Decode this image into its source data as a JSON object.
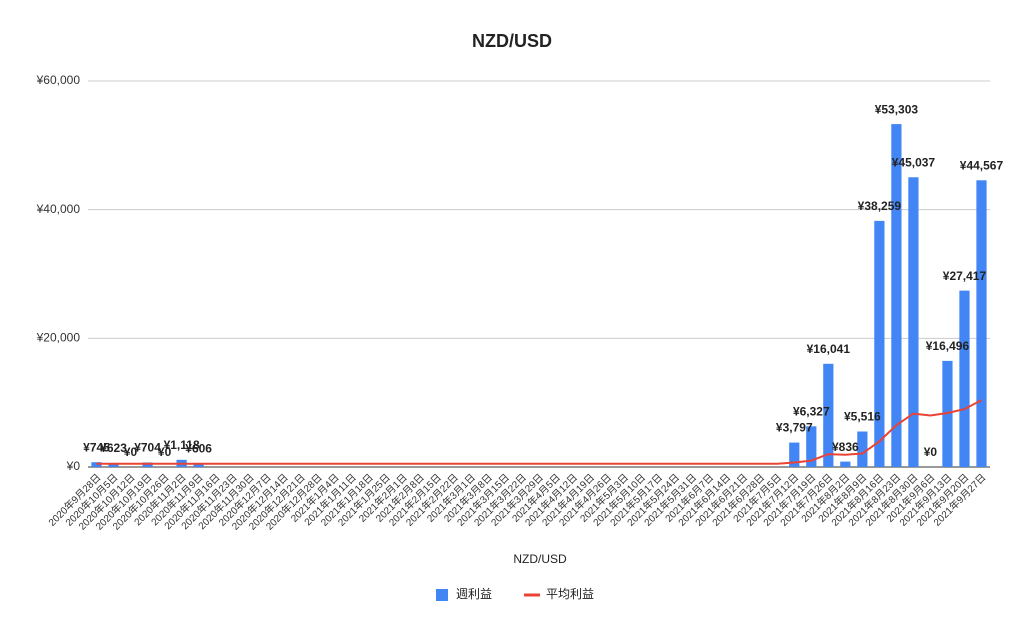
{
  "chart_data": {
    "type": "bar",
    "title": "NZD/USD",
    "x_label": "NZD/USD",
    "categories": [
      "2020年9月28日",
      "2020年10月5日",
      "2020年10月12日",
      "2020年10月19日",
      "2020年10月26日",
      "2020年11月2日",
      "2020年11月9日",
      "2020年11月16日",
      "2020年11月23日",
      "2020年11月30日",
      "2020年12月7日",
      "2020年12月14日",
      "2020年12月21日",
      "2020年12月28日",
      "2021年1月4日",
      "2021年1月11日",
      "2021年1月18日",
      "2021年1月25日",
      "2021年2月1日",
      "2021年2月8日",
      "2021年2月15日",
      "2021年2月22日",
      "2021年3月1日",
      "2021年3月8日",
      "2021年3月15日",
      "2021年3月22日",
      "2021年3月29日",
      "2021年4月5日",
      "2021年4月12日",
      "2021年4月19日",
      "2021年4月26日",
      "2021年5月3日",
      "2021年5月10日",
      "2021年5月17日",
      "2021年5月24日",
      "2021年5月31日",
      "2021年6月7日",
      "2021年6月14日",
      "2021年6月21日",
      "2021年6月28日",
      "2021年7月5日",
      "2021年7月12日",
      "2021年7月19日",
      "2021年7月26日",
      "2021年8月2日",
      "2021年8月9日",
      "2021年8月16日",
      "2021年8月23日",
      "2021年8月30日",
      "2021年9月6日",
      "2021年9月13日",
      "2021年9月20日",
      "2021年9月27日"
    ],
    "series": [
      {
        "name": "週利益",
        "type": "bar",
        "color": "#4285f4",
        "values": [
          745,
          623,
          0,
          704,
          0,
          1118,
          606,
          0,
          0,
          0,
          0,
          0,
          0,
          0,
          0,
          0,
          0,
          0,
          0,
          0,
          0,
          0,
          0,
          0,
          0,
          0,
          0,
          0,
          0,
          0,
          0,
          0,
          0,
          0,
          0,
          0,
          0,
          0,
          0,
          0,
          0,
          3797,
          6327,
          16041,
          836,
          5516,
          38259,
          53303,
          45037,
          0,
          16496,
          27417,
          44567
        ],
        "value_labels": [
          "¥745",
          "¥623",
          "¥0",
          "¥704",
          "¥0",
          "¥1,118",
          "¥606",
          null,
          null,
          null,
          null,
          null,
          null,
          null,
          null,
          null,
          null,
          null,
          null,
          null,
          null,
          null,
          null,
          null,
          null,
          null,
          null,
          null,
          null,
          null,
          null,
          null,
          null,
          null,
          null,
          null,
          null,
          null,
          null,
          null,
          null,
          "¥3,797",
          "¥6,327",
          "¥16,041",
          "¥836",
          "¥5,516",
          "¥38,259",
          "¥53,303",
          "¥45,037",
          "¥0",
          "¥16,496",
          "¥27,417",
          "¥44,567"
        ]
      },
      {
        "name": "平均利益",
        "type": "line",
        "color": "#ea4335",
        "values": [
          500,
          500,
          500,
          500,
          500,
          500,
          500,
          500,
          500,
          500,
          500,
          500,
          500,
          500,
          500,
          500,
          500,
          500,
          500,
          500,
          500,
          500,
          500,
          500,
          500,
          500,
          500,
          500,
          500,
          500,
          500,
          500,
          500,
          500,
          500,
          500,
          500,
          500,
          500,
          500,
          500,
          700,
          1000,
          2000,
          1900,
          2100,
          4000,
          6500,
          8300,
          8000,
          8400,
          9000,
          10400
        ]
      }
    ],
    "ylim": [
      0,
      60000
    ],
    "yticks": [
      {
        "value": 0,
        "label": "¥0"
      },
      {
        "value": 20000,
        "label": "¥20,000"
      },
      {
        "value": 40000,
        "label": "¥40,000"
      },
      {
        "value": 60000,
        "label": "¥60,000"
      }
    ],
    "grid": true
  }
}
